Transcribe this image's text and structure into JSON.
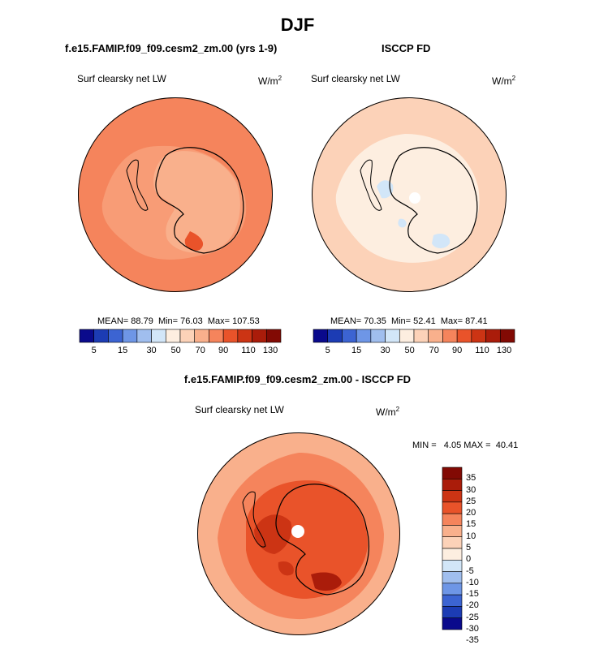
{
  "page_title": "DJF",
  "panels": [
    {
      "title": "f.e15.FAMIP.f09_f09.cesm2_zm.00 (yrs 1-9)",
      "variable": "Surf clearsky net LW",
      "units_base": "W/m",
      "units_exp": "2",
      "stats": {
        "mean_label": "MEAN=",
        "mean": "88.79",
        "min_label": "Min=",
        "min": "76.03",
        "max_label": "Max=",
        "max": "107.53"
      },
      "colorbar_labels": [
        "5",
        "15",
        "30",
        "50",
        "70",
        "90",
        "110",
        "130"
      ]
    },
    {
      "title": "ISCCP FD",
      "variable": "Surf clearsky net LW",
      "units_base": "W/m",
      "units_exp": "2",
      "stats": {
        "mean_label": "MEAN=",
        "mean": "70.35",
        "min_label": "Min=",
        "min": "52.41",
        "max_label": "Max=",
        "max": "87.41"
      },
      "colorbar_labels": [
        "5",
        "15",
        "30",
        "50",
        "70",
        "90",
        "110",
        "130"
      ]
    }
  ],
  "diff_panel": {
    "title": "f.e15.FAMIP.f09_f09.cesm2_zm.00 - ISCCP FD",
    "variable": "Surf clearsky net LW",
    "units_base": "W/m",
    "units_exp": "2",
    "minmax_text": "MIN =   4.05 MAX =  40.41",
    "colorbar_labels": [
      "35",
      "30",
      "25",
      "20",
      "15",
      "10",
      "5",
      "0",
      "-5",
      "-10",
      "-15",
      "-20",
      "-25",
      "-30",
      "-35"
    ]
  },
  "colors": {
    "abs_scale": [
      "#0a0a8c",
      "#1c3cb4",
      "#3c64d2",
      "#6e96e6",
      "#a0beee",
      "#d2e6f8",
      "#fdeee0",
      "#fcd2b8",
      "#f9b08c",
      "#f5845c",
      "#e9532a",
      "#cc3414",
      "#aa1c0a",
      "#820a04"
    ],
    "diff_scale": [
      "#820a04",
      "#aa1c0a",
      "#cc3414",
      "#e9532a",
      "#f5845c",
      "#f9b08c",
      "#fcd2b8",
      "#fdeee0",
      "#d2e6f8",
      "#a0beee",
      "#6e96e6",
      "#3c64d2",
      "#1c3cb4",
      "#0a0a8c"
    ],
    "coast": "#000000"
  }
}
